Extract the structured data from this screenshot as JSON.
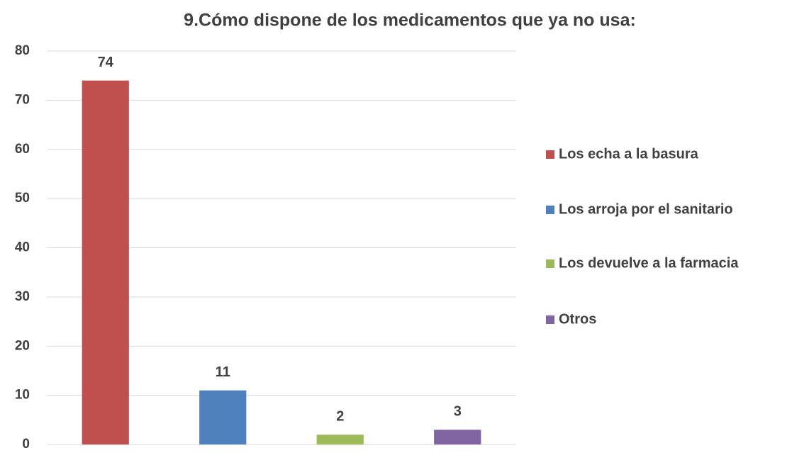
{
  "chart_data": {
    "type": "bar",
    "title": "9.Cómo dispone de los medicamentos que ya no usa:",
    "series": [
      {
        "name": "Los echa a la basura",
        "color": "#c0504d",
        "values": [
          74
        ]
      },
      {
        "name": "Los arroja por el sanitario",
        "color": "#4f81bd",
        "values": [
          11
        ]
      },
      {
        "name": "Los devuelve a la farmacia",
        "color": "#9bbb59",
        "values": [
          2
        ]
      },
      {
        "name": "Otros",
        "color": "#8064a2",
        "values": [
          3
        ]
      }
    ],
    "ylim": [
      0,
      80
    ],
    "yticks": [
      0,
      10,
      20,
      30,
      40,
      50,
      60,
      70,
      80
    ],
    "grid": true,
    "legend": "right"
  }
}
